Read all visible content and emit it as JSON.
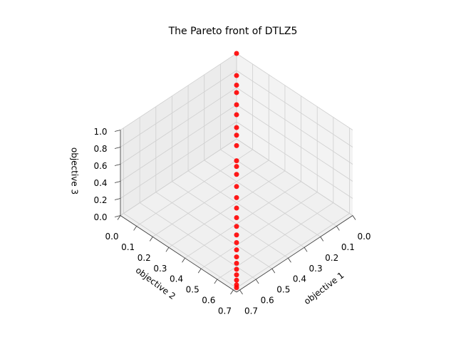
{
  "chart_data": {
    "type": "scatter3d",
    "title": "The Pareto front of DTLZ5",
    "xlabel": "objective 1",
    "ylabel": "objective 2",
    "zlabel": "objective 3",
    "color": "#ff0000",
    "grid": true,
    "x": [
      0,
      0.1,
      0.141,
      0.172,
      0.221,
      0.26,
      0.308,
      0.336,
      0.373,
      0.424,
      0.443,
      0.468,
      0.505,
      0.537,
      0.566,
      0.591,
      0.612,
      0.632,
      0.648,
      0.662,
      0.675,
      0.685,
      0.693,
      0.699,
      0.704,
      0.706,
      0.707
    ],
    "y": [
      0,
      0.1,
      0.141,
      0.172,
      0.221,
      0.26,
      0.308,
      0.336,
      0.373,
      0.424,
      0.443,
      0.468,
      0.505,
      0.537,
      0.566,
      0.591,
      0.612,
      0.632,
      0.648,
      0.662,
      0.675,
      0.685,
      0.693,
      0.699,
      0.704,
      0.706,
      0.707
    ],
    "z": [
      1.0,
      0.99,
      0.98,
      0.97,
      0.95,
      0.93,
      0.9,
      0.88,
      0.85,
      0.8,
      0.78,
      0.75,
      0.7,
      0.65,
      0.6,
      0.55,
      0.5,
      0.45,
      0.4,
      0.35,
      0.3,
      0.25,
      0.2,
      0.15,
      0.1,
      0.05,
      0.02
    ],
    "xlim": [
      0,
      0.72
    ],
    "ylim": [
      0,
      0.72
    ],
    "zlim": [
      0,
      1.0
    ],
    "xticks": [
      {
        "value": 0,
        "label": "0.0"
      },
      0.1,
      0.2,
      0.3,
      0.4,
      0.5,
      0.6,
      0.7
    ],
    "yticks": [
      {
        "value": 0,
        "label": "0.0"
      },
      0.1,
      0.2,
      0.3,
      0.4,
      0.5,
      0.6,
      0.7
    ],
    "zticks": [
      {
        "value": 0,
        "label": "0.0"
      },
      0.2,
      0.4,
      0.6,
      0.8,
      {
        "value": 1,
        "label": "1.0"
      }
    ]
  }
}
